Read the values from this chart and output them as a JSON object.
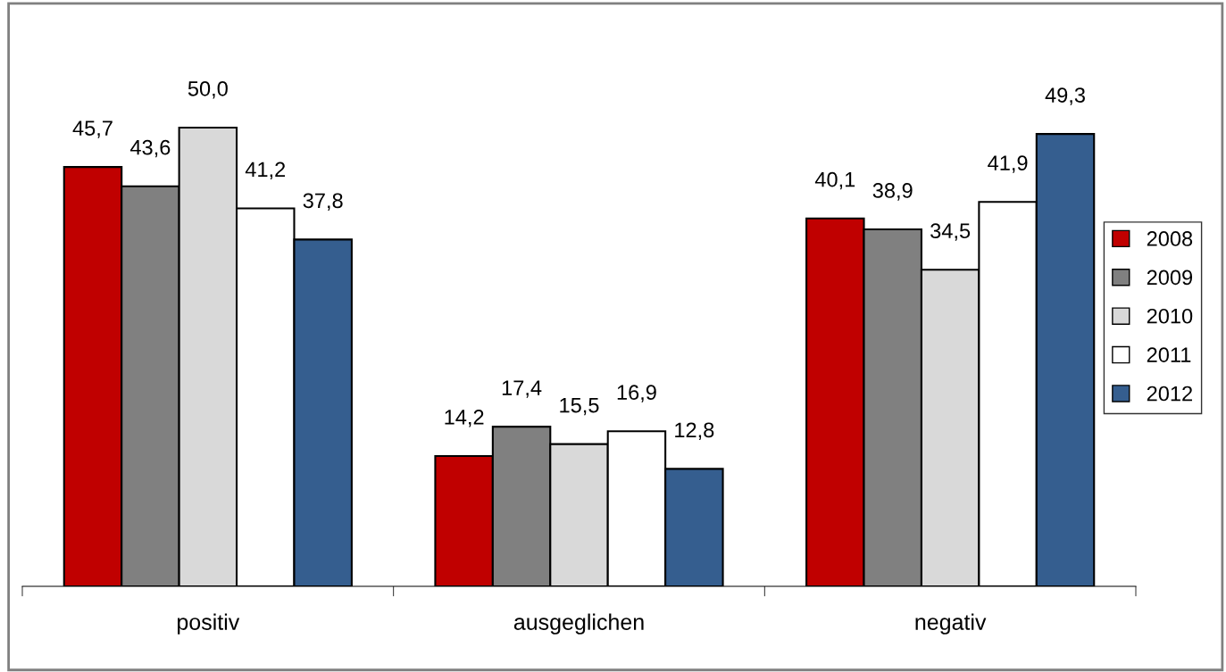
{
  "chart_data": {
    "type": "bar",
    "categories": [
      "positiv",
      "ausgeglichen",
      "negativ"
    ],
    "series": [
      {
        "name": "2008",
        "color": "#c00000",
        "values": [
          45.7,
          14.2,
          40.1
        ],
        "value_labels": [
          "45,7",
          "14,2",
          "40,1"
        ]
      },
      {
        "name": "2009",
        "color": "#808080",
        "values": [
          43.6,
          17.4,
          38.9
        ],
        "value_labels": [
          "43,6",
          "17,4",
          "38,9"
        ]
      },
      {
        "name": "2010",
        "color": "#d9d9d9",
        "values": [
          50.0,
          15.5,
          34.5
        ],
        "value_labels": [
          "50,0",
          "15,5",
          "34,5"
        ]
      },
      {
        "name": "2011",
        "color": "#ffffff",
        "values": [
          41.2,
          16.9,
          41.9
        ],
        "value_labels": [
          "41,2",
          "16,9",
          "41,9"
        ]
      },
      {
        "name": "2012",
        "color": "#355e8f",
        "values": [
          37.8,
          12.8,
          49.3
        ],
        "value_labels": [
          "37,8",
          "12,8",
          "49,3"
        ]
      }
    ],
    "legend": "right",
    "grid": false
  }
}
